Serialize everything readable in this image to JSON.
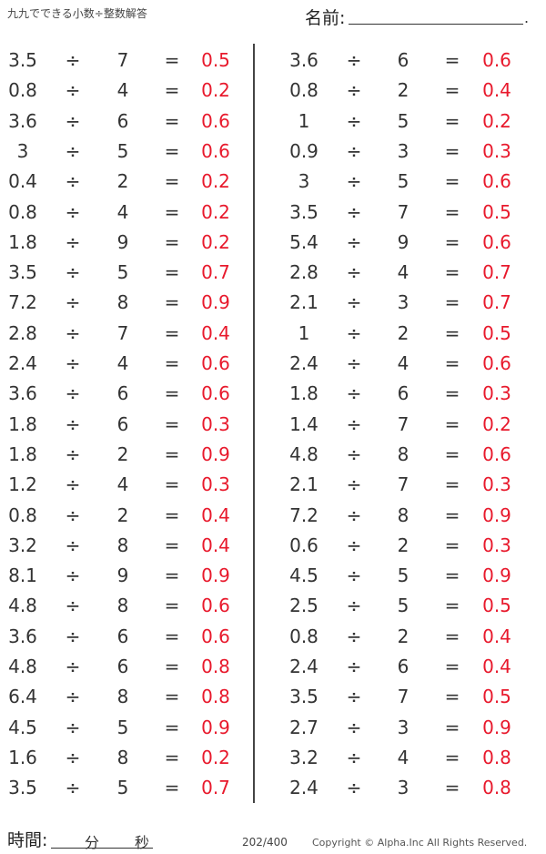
{
  "header": {
    "title": "九九でできる小数÷整数解答",
    "name_label": "名前:",
    "name_end": "."
  },
  "footer": {
    "time_label": "時間:",
    "minutes": "分",
    "seconds": "秒",
    "page": "202/400",
    "copyright": "Copyright ©  Alpha.Inc All Rights Reserved."
  },
  "colors": {
    "answer": "#e8192c",
    "text": "#333333"
  },
  "operator": "÷",
  "equals": "=",
  "left": [
    [
      "3.5",
      "7",
      "0.5"
    ],
    [
      "0.8",
      "4",
      "0.2"
    ],
    [
      "3.6",
      "6",
      "0.6"
    ],
    [
      "3",
      "5",
      "0.6"
    ],
    [
      "0.4",
      "2",
      "0.2"
    ],
    [
      "0.8",
      "4",
      "0.2"
    ],
    [
      "1.8",
      "9",
      "0.2"
    ],
    [
      "3.5",
      "5",
      "0.7"
    ],
    [
      "7.2",
      "8",
      "0.9"
    ],
    [
      "2.8",
      "7",
      "0.4"
    ],
    [
      "2.4",
      "4",
      "0.6"
    ],
    [
      "3.6",
      "6",
      "0.6"
    ],
    [
      "1.8",
      "6",
      "0.3"
    ],
    [
      "1.8",
      "2",
      "0.9"
    ],
    [
      "1.2",
      "4",
      "0.3"
    ],
    [
      "0.8",
      "2",
      "0.4"
    ],
    [
      "3.2",
      "8",
      "0.4"
    ],
    [
      "8.1",
      "9",
      "0.9"
    ],
    [
      "4.8",
      "8",
      "0.6"
    ],
    [
      "3.6",
      "6",
      "0.6"
    ],
    [
      "4.8",
      "6",
      "0.8"
    ],
    [
      "6.4",
      "8",
      "0.8"
    ],
    [
      "4.5",
      "5",
      "0.9"
    ],
    [
      "1.6",
      "8",
      "0.2"
    ],
    [
      "3.5",
      "5",
      "0.7"
    ]
  ],
  "right": [
    [
      "3.6",
      "6",
      "0.6"
    ],
    [
      "0.8",
      "2",
      "0.4"
    ],
    [
      "1",
      "5",
      "0.2"
    ],
    [
      "0.9",
      "3",
      "0.3"
    ],
    [
      "3",
      "5",
      "0.6"
    ],
    [
      "3.5",
      "7",
      "0.5"
    ],
    [
      "5.4",
      "9",
      "0.6"
    ],
    [
      "2.8",
      "4",
      "0.7"
    ],
    [
      "2.1",
      "3",
      "0.7"
    ],
    [
      "1",
      "2",
      "0.5"
    ],
    [
      "2.4",
      "4",
      "0.6"
    ],
    [
      "1.8",
      "6",
      "0.3"
    ],
    [
      "1.4",
      "7",
      "0.2"
    ],
    [
      "4.8",
      "8",
      "0.6"
    ],
    [
      "2.1",
      "7",
      "0.3"
    ],
    [
      "7.2",
      "8",
      "0.9"
    ],
    [
      "0.6",
      "2",
      "0.3"
    ],
    [
      "4.5",
      "5",
      "0.9"
    ],
    [
      "2.5",
      "5",
      "0.5"
    ],
    [
      "0.8",
      "2",
      "0.4"
    ],
    [
      "2.4",
      "6",
      "0.4"
    ],
    [
      "3.5",
      "7",
      "0.5"
    ],
    [
      "2.7",
      "3",
      "0.9"
    ],
    [
      "3.2",
      "4",
      "0.8"
    ],
    [
      "2.4",
      "3",
      "0.8"
    ]
  ]
}
